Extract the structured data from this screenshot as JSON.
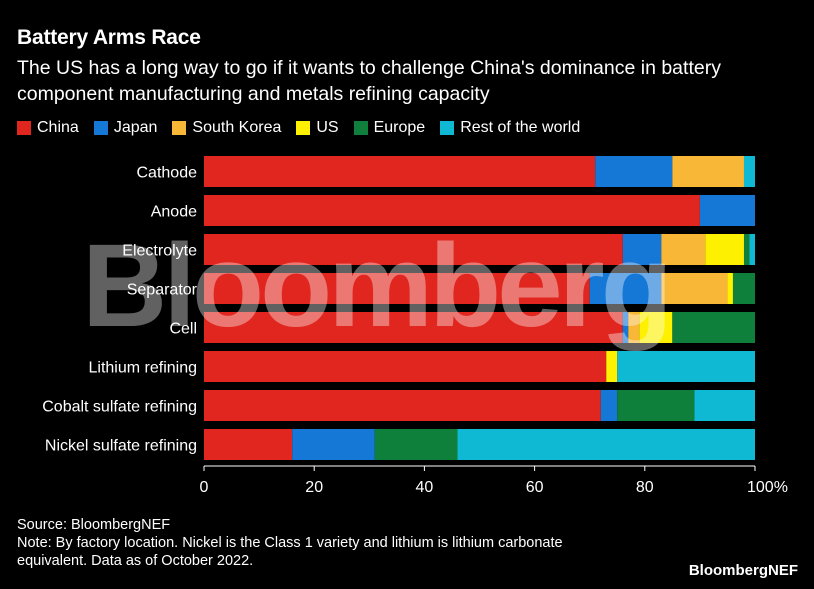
{
  "title": "Battery Arms Race",
  "subtitle": "The US has a long way to go if it wants to challenge China's dominance in battery component manufacturing and metals refining capacity",
  "watermark": "Bloomberg",
  "source": "Source: BloombergNEF",
  "note": "Note: By factory location. Nickel is the Class 1 variety and lithium is lithium carbonate equivalent. Data as of October 2022.",
  "brand": "BloombergNEF",
  "chart_data": {
    "type": "bar",
    "orientation": "horizontal",
    "stacked": true,
    "categories": [
      "Cathode",
      "Anode",
      "Electrolyte",
      "Separator",
      "Cell",
      "Lithium refining",
      "Cobalt sulfate refining",
      "Nickel sulfate refining"
    ],
    "series": [
      {
        "name": "China",
        "color": "#e0261f",
        "values": [
          71,
          90,
          76,
          70,
          76,
          73,
          72,
          16
        ]
      },
      {
        "name": "Japan",
        "color": "#1577d6",
        "values": [
          14,
          10,
          7,
          13,
          1,
          0,
          3,
          15
        ]
      },
      {
        "name": "South Korea",
        "color": "#f8b736",
        "values": [
          13,
          0,
          8,
          12,
          2,
          0,
          0,
          0
        ]
      },
      {
        "name": "US",
        "color": "#fdf001",
        "values": [
          0,
          0,
          7,
          1,
          6,
          2,
          0,
          0
        ]
      },
      {
        "name": "Europe",
        "color": "#0f7f3c",
        "values": [
          0,
          0,
          1,
          4,
          15,
          0,
          14,
          15
        ]
      },
      {
        "name": "Rest of the world",
        "color": "#10b9d3",
        "values": [
          2,
          0,
          1,
          0,
          0,
          25,
          11,
          54
        ]
      }
    ],
    "xlim": [
      0,
      100
    ],
    "xticks": [
      "0",
      "20",
      "40",
      "60",
      "80",
      "100%"
    ],
    "grid": false,
    "legend_position": "top-left"
  }
}
